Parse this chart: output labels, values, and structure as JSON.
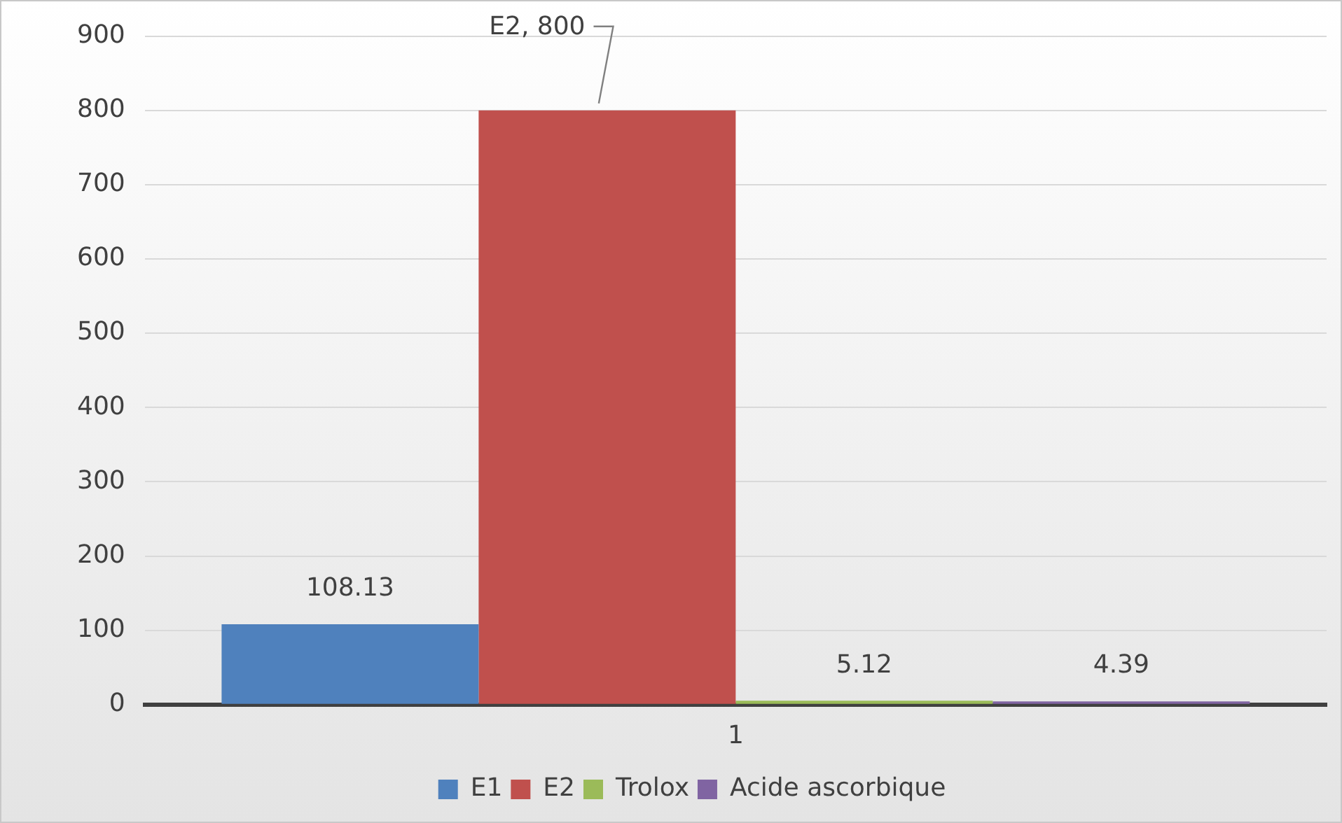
{
  "chart_data": {
    "type": "bar",
    "categories": [
      "1"
    ],
    "series": [
      {
        "name": "E1",
        "color": "#4f81bd",
        "values": [
          108.13
        ],
        "value_labels": [
          "108.13"
        ]
      },
      {
        "name": "E2",
        "color": "#c0504d",
        "values": [
          800
        ],
        "value_labels": [
          "E2, 800"
        ]
      },
      {
        "name": "Trolox",
        "color": "#9bbb59",
        "values": [
          5.12
        ],
        "value_labels": [
          "5.12"
        ]
      },
      {
        "name": "Acide ascorbique",
        "color": "#8064a2",
        "values": [
          4.39
        ],
        "value_labels": [
          "4.39"
        ]
      }
    ],
    "ylim": [
      0,
      900
    ],
    "yticks": [
      0,
      100,
      200,
      300,
      400,
      500,
      600,
      700,
      800,
      900
    ],
    "grid": "y",
    "legend": "bottom"
  }
}
